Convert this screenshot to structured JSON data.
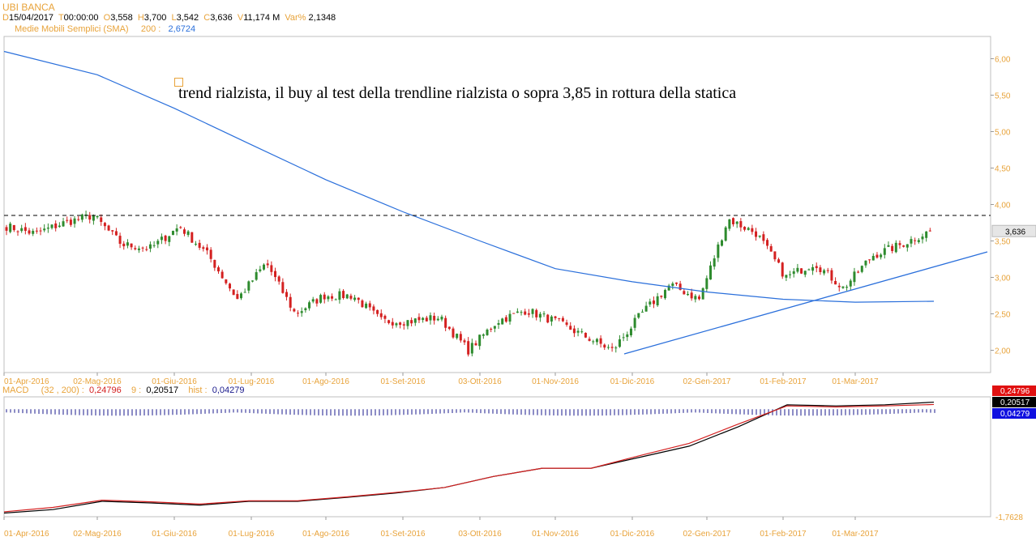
{
  "header": {
    "symbol": "UBI BANCA",
    "date_label": "D",
    "date": "15/04/2017",
    "time_label": "T",
    "time": "00:00:00",
    "open_label": "O",
    "open": "3,558",
    "high_label": "H",
    "high": "3,700",
    "low_label": "L",
    "low": "3,542",
    "close_label": "C",
    "close": "3,636",
    "volume_label": "V",
    "volume": "11,174 M",
    "change_label": "Var%",
    "change": "2,1348"
  },
  "sma_legend": {
    "name": "Medie Mobili Semplici (SMA)",
    "period": "200 :",
    "value": "2,6724"
  },
  "annotation": "trend rialzista, il buy al test della trendline rialzista o sopra 3,85 in rottura della statica",
  "price_axis": {
    "ticks": [
      "6,00",
      "5,50",
      "5,00",
      "4,50",
      "4,00",
      "3,50",
      "3,00",
      "2,50",
      "2,00"
    ],
    "current": "3,636"
  },
  "macd_legend": {
    "name": "MACD",
    "params": "(32 , 200) :",
    "macd_value": "0,24796",
    "signal_label": "9 :",
    "signal_value": "0,20517",
    "hist_label": "hist :",
    "hist_value": "0,04279"
  },
  "macd_axis": {
    "tags": [
      "0,24796",
      "0,20517",
      "0,04279"
    ],
    "min_label": "-1,7628"
  },
  "dates": [
    "01-Apr-2016",
    "02-Mag-2016",
    "01-Giu-2016",
    "01-Lug-2016",
    "01-Ago-2016",
    "01-Set-2016",
    "03-Ott-2016",
    "01-Nov-2016",
    "01-Dic-2016",
    "02-Gen-2017",
    "01-Feb-2017",
    "01-Mar-2017"
  ],
  "colors": {
    "up": "#2e8b2e",
    "down": "#d42020",
    "sma": "#2a6fdb",
    "macd": "#000000",
    "signal": "#d42020",
    "hist": "#1a1a8c",
    "label": "#e8a33a"
  },
  "chart_data": {
    "type": "candlestick",
    "title": "UBI BANCA",
    "x_dates": [
      "01-Apr-2016",
      "02-Mag-2016",
      "01-Giu-2016",
      "01-Lug-2016",
      "01-Ago-2016",
      "01-Set-2016",
      "03-Ott-2016",
      "01-Nov-2016",
      "01-Dic-2016",
      "02-Gen-2017",
      "01-Feb-2017",
      "01-Mar-2017",
      "15-Apr-2017"
    ],
    "close_path": [
      3.7,
      3.6,
      3.75,
      3.85,
      3.45,
      3.4,
      3.7,
      3.3,
      2.7,
      3.2,
      2.5,
      2.75,
      2.75,
      2.4,
      2.4,
      2.45,
      2.0,
      2.4,
      2.55,
      2.4,
      2.2,
      2.0,
      2.5,
      2.9,
      2.7,
      3.8,
      3.6,
      3.0,
      3.2,
      2.85,
      3.3,
      3.45,
      3.636
    ],
    "sma": {
      "name": "Medie Mobili Semplici (SMA) 200",
      "x": [
        "01-Apr-2016",
        "02-Mag-2016",
        "01-Giu-2016",
        "01-Lug-2016",
        "01-Ago-2016",
        "01-Set-2016",
        "03-Ott-2016",
        "01-Nov-2016",
        "01-Dic-2016",
        "02-Gen-2017",
        "01-Feb-2017",
        "01-Mar-2017",
        "15-Apr-2017"
      ],
      "values": [
        6.1,
        5.78,
        5.32,
        4.82,
        4.34,
        3.9,
        3.5,
        3.12,
        2.94,
        2.8,
        2.7,
        2.66,
        2.6724
      ]
    },
    "resistance_level": 3.85,
    "trendline": {
      "from": [
        "01-Dic-2016",
        1.95
      ],
      "to": [
        "15-Apr-2017",
        3.35
      ]
    },
    "ylim": [
      1.75,
      6.25
    ],
    "last": 3.636
  },
  "macd_chart_data": {
    "type": "line",
    "series": [
      {
        "name": "MACD (32 , 200)",
        "values": [
          -1.7628,
          -1.7,
          -1.55,
          -1.58,
          -1.62,
          -1.55,
          -1.55,
          -1.48,
          -1.4,
          -1.3,
          -1.1,
          -0.95,
          -0.95,
          -0.75,
          -0.55,
          -0.2,
          0.2,
          0.18,
          0.2,
          0.24796
        ]
      },
      {
        "name": "9",
        "values": [
          -1.74,
          -1.66,
          -1.53,
          -1.56,
          -1.6,
          -1.54,
          -1.54,
          -1.47,
          -1.39,
          -1.3,
          -1.1,
          -0.95,
          -0.95,
          -0.72,
          -0.5,
          -0.15,
          0.18,
          0.16,
          0.18,
          0.20517
        ]
      }
    ],
    "hist": 0.04279,
    "ylim": [
      -1.8,
      0.3
    ]
  }
}
